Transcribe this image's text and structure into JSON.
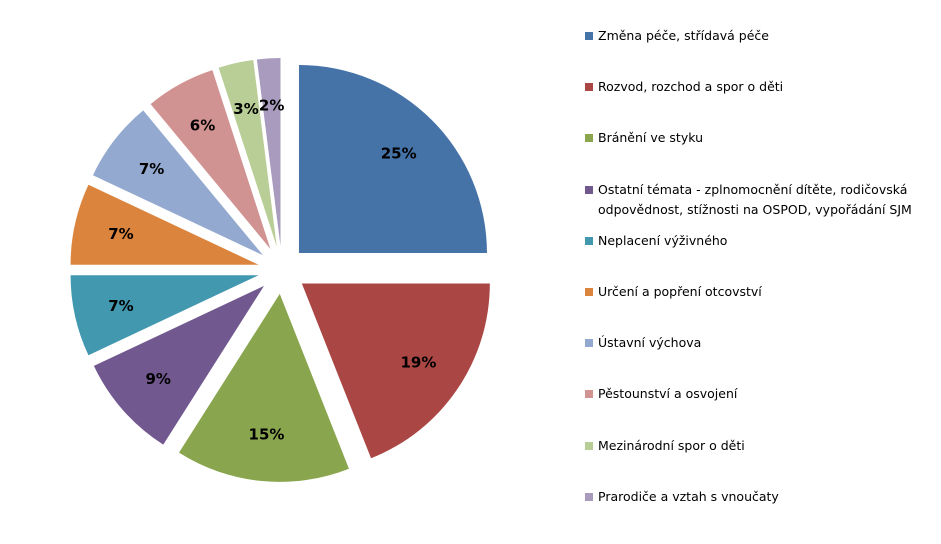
{
  "chart_data": {
    "type": "pie",
    "exploded": true,
    "legend_position": "right",
    "slices": [
      {
        "label": "Změna péče, střídavá péče",
        "value": 25,
        "value_label": "25%",
        "color": "#4572A7"
      },
      {
        "label": "Rozvod, rozchod a spor o děti",
        "value": 19,
        "value_label": "19%",
        "color": "#AA4643"
      },
      {
        "label": "Bránění ve styku",
        "value": 15,
        "value_label": "15%",
        "color": "#89A54E"
      },
      {
        "label": "Ostatní témata - zplnomocnění dítěte, rodičovská odpovědnost, stížnosti na OSPOD, vypořádání SJM",
        "value": 9,
        "value_label": "9%",
        "color": "#71588F"
      },
      {
        "label": "Neplacení výživného",
        "value": 7,
        "value_label": "7%",
        "color": "#4198AF"
      },
      {
        "label": "Určení a popření otcovství",
        "value": 7,
        "value_label": "7%",
        "color": "#DB843D"
      },
      {
        "label": "Ústavní výchova",
        "value": 7,
        "value_label": "7%",
        "color": "#93A9CF"
      },
      {
        "label": "Pěstounství a osvojení",
        "value": 6,
        "value_label": "6%",
        "color": "#D19392"
      },
      {
        "label": "Mezinárodní spor o děti",
        "value": 3,
        "value_label": "3%",
        "color": "#B9CD96"
      },
      {
        "label": "Prarodiče a vztah s vnoučaty",
        "value": 2,
        "value_label": "2%",
        "color": "#A99BBD"
      }
    ]
  }
}
